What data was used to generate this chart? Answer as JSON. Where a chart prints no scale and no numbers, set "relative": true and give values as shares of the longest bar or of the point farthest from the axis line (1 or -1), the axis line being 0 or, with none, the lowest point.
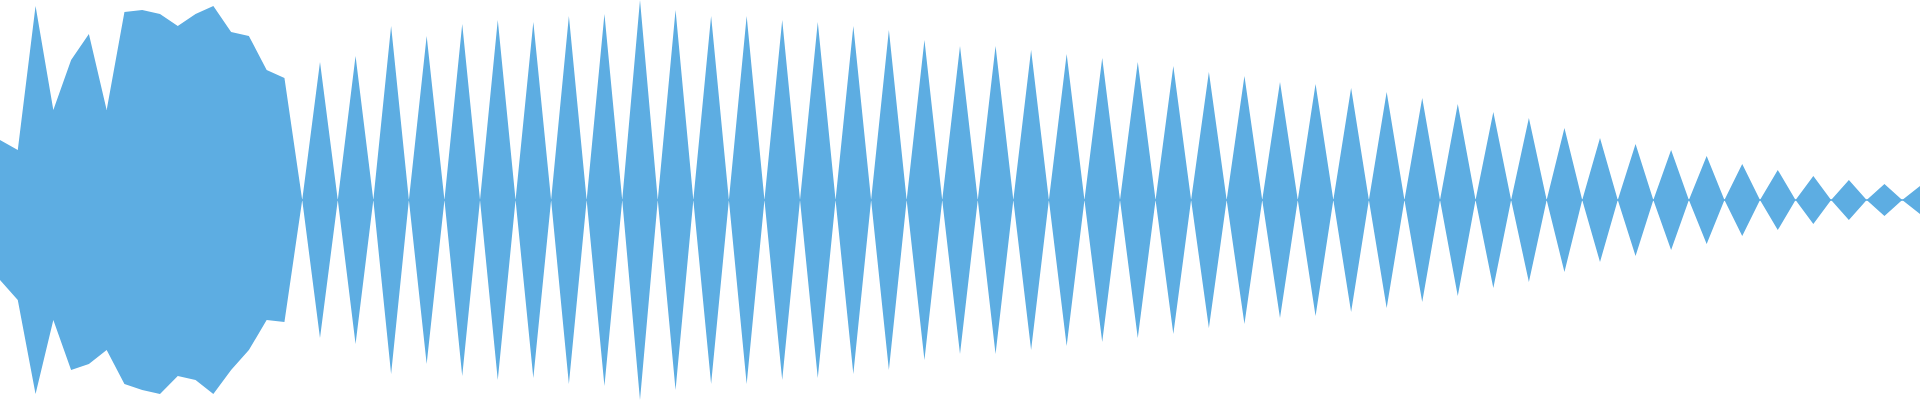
{
  "chart_data": {
    "type": "area",
    "relative": true,
    "ref_lines": [
      {
        "axis": "y",
        "value": 0,
        "color": "#5dade2"
      }
    ],
    "categories": [
      null,
      null,
      null,
      null,
      null,
      null,
      null,
      null,
      null,
      null,
      null,
      null,
      null,
      null,
      null,
      null,
      null,
      null,
      null,
      null,
      null,
      null,
      null,
      null,
      null,
      null,
      null,
      null,
      null,
      null,
      null,
      null,
      null,
      null,
      null,
      null,
      null,
      null,
      null,
      null,
      null,
      null,
      null,
      null,
      null,
      null,
      null,
      null,
      null,
      null,
      null,
      null,
      null,
      null,
      null,
      null,
      null,
      null,
      null,
      null,
      null,
      null,
      null,
      null,
      null,
      null,
      null,
      null,
      null,
      null,
      null,
      null,
      null,
      null,
      null,
      null,
      null,
      null,
      null,
      null,
      null,
      null,
      null,
      null,
      null,
      null,
      null,
      null,
      null,
      null,
      null,
      null,
      null,
      null,
      null,
      null,
      null,
      null,
      null,
      null,
      null,
      null,
      null,
      null,
      null,
      null,
      null,
      null,
      null
    ],
    "series": [
      {
        "color": "#5dade2",
        "values": [
          0.3,
          0.25,
          0.97,
          0.45,
          0.7,
          0.83,
          0.45,
          0.94,
          0.95,
          0.93,
          0.87,
          0.93,
          0.97,
          0.84,
          0.82,
          0.65,
          0.61,
          0,
          0.69,
          0,
          0.72,
          0,
          0.87,
          0,
          0.82,
          0,
          0.88,
          0,
          0.9,
          0,
          0.89,
          0,
          0.92,
          0,
          0.93,
          0,
          1,
          0,
          0.95,
          0,
          0.92,
          0,
          0.92,
          0,
          0.9,
          0,
          0.89,
          0,
          0.87,
          0,
          0.85,
          0,
          0.8,
          0,
          0.77,
          0,
          0.77,
          0,
          0.75,
          0,
          0.73,
          0,
          0.71,
          0,
          0.69,
          0,
          0.67,
          0,
          0.64,
          0,
          0.62,
          0,
          0.59,
          0,
          0.58,
          0,
          0.56,
          0,
          0.54,
          0,
          0.51,
          0,
          0.48,
          0,
          0.44,
          0,
          0.41,
          0,
          0.36,
          0,
          0.31,
          0,
          0.28,
          0,
          0.25,
          0,
          0.22,
          0,
          0.18,
          0,
          0.15,
          0,
          0.12,
          0,
          0.1,
          0,
          0.08,
          0,
          0.07
        ]
      },
      {
        "color": "#5dade2",
        "values": [
          -0.4,
          -0.5,
          -0.97,
          -0.6,
          -0.85,
          -0.82,
          -0.75,
          -0.92,
          -0.95,
          -0.97,
          -0.88,
          -0.9,
          -0.97,
          -0.85,
          -0.75,
          -0.6,
          -0.61,
          0,
          -0.69,
          0,
          -0.72,
          0,
          -0.87,
          0,
          -0.82,
          0,
          -0.88,
          0,
          -0.9,
          0,
          -0.89,
          0,
          -0.92,
          0,
          -0.93,
          0,
          -1,
          0,
          -0.95,
          0,
          -0.92,
          0,
          -0.92,
          0,
          -0.9,
          0,
          -0.89,
          0,
          -0.87,
          0,
          -0.85,
          0,
          -0.8,
          0,
          -0.77,
          0,
          -0.77,
          0,
          -0.75,
          0,
          -0.73,
          0,
          -0.71,
          0,
          -0.69,
          0,
          -0.67,
          0,
          -0.64,
          0,
          -0.62,
          0,
          -0.59,
          0,
          -0.58,
          0,
          -0.56,
          0,
          -0.54,
          0,
          -0.51,
          0,
          -0.48,
          0,
          -0.44,
          0,
          -0.41,
          0,
          -0.36,
          0,
          -0.31,
          0,
          -0.28,
          0,
          -0.25,
          0,
          -0.22,
          0,
          -0.18,
          0,
          -0.15,
          0,
          -0.12,
          0,
          -0.1,
          0,
          -0.08,
          0,
          -0.07
        ]
      }
    ]
  }
}
